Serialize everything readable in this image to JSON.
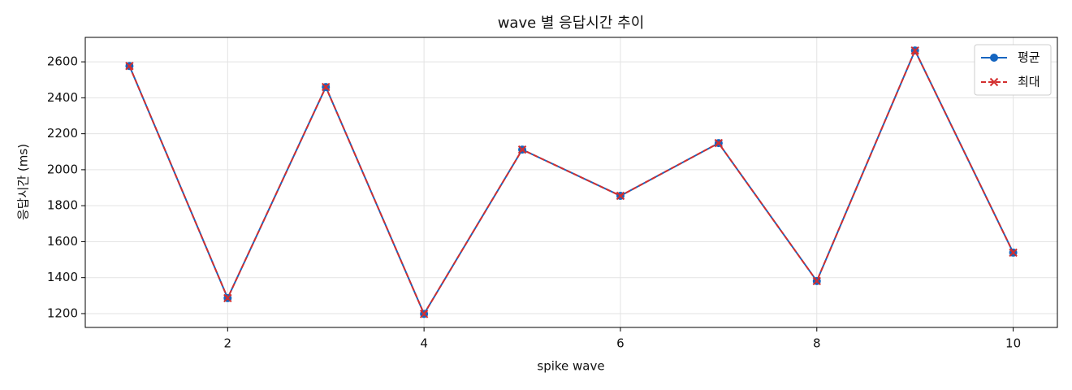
{
  "chart_data": {
    "type": "line",
    "title": "wave 별 응답시간 추이",
    "xlabel": "spike wave",
    "ylabel": "응답시간 (ms)",
    "x": [
      1,
      2,
      3,
      4,
      5,
      6,
      7,
      8,
      9,
      10
    ],
    "series": [
      {
        "name": "평균",
        "color": "#1565c0",
        "marker": "o",
        "linestyle": "solid",
        "values": [
          2577,
          1286,
          2460,
          1198,
          2112,
          1855,
          2148,
          1381,
          2663,
          1539
        ]
      },
      {
        "name": "최대",
        "color": "#d32f2f",
        "marker": "x",
        "linestyle": "dashed",
        "values": [
          2577,
          1286,
          2460,
          1198,
          2112,
          1855,
          2148,
          1381,
          2663,
          1539
        ]
      }
    ],
    "xlim": [
      0.55,
      10.45
    ],
    "xticks": [
      2,
      4,
      6,
      8,
      10
    ],
    "ylim": [
      1123,
      2736
    ],
    "yticks": [
      1200,
      1400,
      1600,
      1800,
      2000,
      2200,
      2400,
      2600
    ],
    "grid": true,
    "legend": "upper right"
  }
}
